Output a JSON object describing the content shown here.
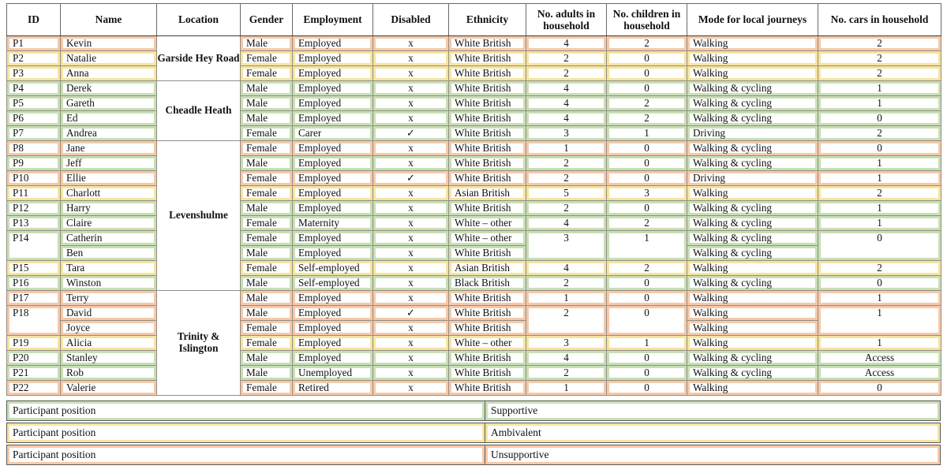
{
  "colors": {
    "supportive": "#C8DFB5",
    "ambivalent": "#F5E4A0",
    "unsupportive": "#F5C9AA"
  },
  "table": {
    "columns": [
      "id",
      "name",
      "location",
      "gender",
      "employment",
      "disabled",
      "ethnicity",
      "adults",
      "children",
      "mode",
      "cars"
    ],
    "headers": {
      "id": "ID",
      "name": "Name",
      "location": "Location",
      "gender": "Gender",
      "employment": "Employment",
      "disabled": "Disabled",
      "ethnicity": "Ethnicity",
      "adults": "No. adults in household",
      "children": "No. children in household",
      "mode": "Mode for local journeys",
      "cars": "No. cars in household"
    },
    "rows": [
      {
        "position": "unsupportive",
        "group_start": true,
        "cells": {
          "id": {
            "text": "P1"
          },
          "name": {
            "text": "Kevin"
          },
          "location": {
            "text": "Garside Hey Road",
            "rows": 3
          },
          "gender": {
            "text": "Male"
          },
          "employment": {
            "text": "Employed"
          },
          "disabled": {
            "text": "x"
          },
          "ethnicity": {
            "text": "White British"
          },
          "adults": {
            "text": "4"
          },
          "children": {
            "text": "2"
          },
          "mode": {
            "text": "Walking"
          },
          "cars": {
            "text": "2"
          }
        }
      },
      {
        "position": "ambivalent",
        "cells": {
          "id": {
            "text": "P2"
          },
          "name": {
            "text": "Natalie"
          },
          "gender": {
            "text": "Female"
          },
          "employment": {
            "text": "Employed"
          },
          "disabled": {
            "text": "x"
          },
          "ethnicity": {
            "text": "White British"
          },
          "adults": {
            "text": "2"
          },
          "children": {
            "text": "0"
          },
          "mode": {
            "text": "Walking"
          },
          "cars": {
            "text": "2"
          }
        }
      },
      {
        "position": "ambivalent",
        "cells": {
          "id": {
            "text": "P3"
          },
          "name": {
            "text": "Anna"
          },
          "gender": {
            "text": "Female"
          },
          "employment": {
            "text": "Employed"
          },
          "disabled": {
            "text": "x"
          },
          "ethnicity": {
            "text": "White British"
          },
          "adults": {
            "text": "2"
          },
          "children": {
            "text": "0"
          },
          "mode": {
            "text": "Walking"
          },
          "cars": {
            "text": "2"
          }
        }
      },
      {
        "position": "supportive",
        "group_start": true,
        "cells": {
          "id": {
            "text": "P4"
          },
          "name": {
            "text": "Derek"
          },
          "location": {
            "text": "Cheadle Heath",
            "rows": 4
          },
          "gender": {
            "text": "Male"
          },
          "employment": {
            "text": "Employed"
          },
          "disabled": {
            "text": "x"
          },
          "ethnicity": {
            "text": "White British"
          },
          "adults": {
            "text": "4"
          },
          "children": {
            "text": "0"
          },
          "mode": {
            "text": "Walking & cycling"
          },
          "cars": {
            "text": "1"
          }
        }
      },
      {
        "position": "supportive",
        "cells": {
          "id": {
            "text": "P5"
          },
          "name": {
            "text": "Gareth"
          },
          "gender": {
            "text": "Male"
          },
          "employment": {
            "text": "Employed"
          },
          "disabled": {
            "text": "x"
          },
          "ethnicity": {
            "text": "White British"
          },
          "adults": {
            "text": "4"
          },
          "children": {
            "text": "2"
          },
          "mode": {
            "text": "Walking & cycling"
          },
          "cars": {
            "text": "1"
          }
        }
      },
      {
        "position": "supportive",
        "cells": {
          "id": {
            "text": "P6"
          },
          "name": {
            "text": "Ed"
          },
          "gender": {
            "text": "Male"
          },
          "employment": {
            "text": "Employed"
          },
          "disabled": {
            "text": "x"
          },
          "ethnicity": {
            "text": "White British"
          },
          "adults": {
            "text": "4"
          },
          "children": {
            "text": "2"
          },
          "mode": {
            "text": "Walking & cycling"
          },
          "cars": {
            "text": "0"
          }
        }
      },
      {
        "position": "supportive",
        "cells": {
          "id": {
            "text": "P7"
          },
          "name": {
            "text": "Andrea"
          },
          "gender": {
            "text": "Female"
          },
          "employment": {
            "text": "Carer"
          },
          "disabled": {
            "text": "✓"
          },
          "ethnicity": {
            "text": "White British"
          },
          "adults": {
            "text": "3"
          },
          "children": {
            "text": "1"
          },
          "mode": {
            "text": "Driving"
          },
          "cars": {
            "text": "2"
          }
        }
      },
      {
        "position": "unsupportive",
        "group_start": true,
        "cells": {
          "id": {
            "text": "P8"
          },
          "name": {
            "text": "Jane"
          },
          "location": {
            "text": "Levenshulme",
            "rows": 10
          },
          "gender": {
            "text": "Female"
          },
          "employment": {
            "text": "Employed"
          },
          "disabled": {
            "text": "x"
          },
          "ethnicity": {
            "text": "White British"
          },
          "adults": {
            "text": "1"
          },
          "children": {
            "text": "0"
          },
          "mode": {
            "text": "Walking & cycling"
          },
          "cars": {
            "text": "0"
          }
        }
      },
      {
        "position": "supportive",
        "cells": {
          "id": {
            "text": "P9"
          },
          "name": {
            "text": "Jeff"
          },
          "gender": {
            "text": "Male"
          },
          "employment": {
            "text": "Employed"
          },
          "disabled": {
            "text": "x"
          },
          "ethnicity": {
            "text": "White British"
          },
          "adults": {
            "text": "2"
          },
          "children": {
            "text": "0"
          },
          "mode": {
            "text": "Walking & cycling"
          },
          "cars": {
            "text": "1"
          }
        }
      },
      {
        "position": "unsupportive",
        "cells": {
          "id": {
            "text": "P10"
          },
          "name": {
            "text": "Ellie"
          },
          "gender": {
            "text": "Female"
          },
          "employment": {
            "text": "Employed"
          },
          "disabled": {
            "text": "✓"
          },
          "ethnicity": {
            "text": "White British"
          },
          "adults": {
            "text": "2"
          },
          "children": {
            "text": "0"
          },
          "mode": {
            "text": "Driving"
          },
          "cars": {
            "text": "1"
          }
        }
      },
      {
        "position": "ambivalent",
        "cells": {
          "id": {
            "text": "P11"
          },
          "name": {
            "text": "Charlott"
          },
          "gender": {
            "text": "Female"
          },
          "employment": {
            "text": "Employed"
          },
          "disabled": {
            "text": "x"
          },
          "ethnicity": {
            "text": "Asian British"
          },
          "adults": {
            "text": "5"
          },
          "children": {
            "text": "3"
          },
          "mode": {
            "text": "Walking"
          },
          "cars": {
            "text": "2"
          }
        }
      },
      {
        "position": "supportive",
        "cells": {
          "id": {
            "text": "P12"
          },
          "name": {
            "text": "Harry"
          },
          "gender": {
            "text": "Male"
          },
          "employment": {
            "text": "Employed"
          },
          "disabled": {
            "text": "x"
          },
          "ethnicity": {
            "text": "White British"
          },
          "adults": {
            "text": "2"
          },
          "children": {
            "text": "0"
          },
          "mode": {
            "text": "Walking & cycling"
          },
          "cars": {
            "text": "1"
          }
        }
      },
      {
        "position": "supportive",
        "cells": {
          "id": {
            "text": "P13"
          },
          "name": {
            "text": "Claire"
          },
          "gender": {
            "text": "Female"
          },
          "employment": {
            "text": "Maternity"
          },
          "disabled": {
            "text": "x"
          },
          "ethnicity": {
            "text": "White – other"
          },
          "adults": {
            "text": "4"
          },
          "children": {
            "text": "2"
          },
          "mode": {
            "text": "Walking & cycling"
          },
          "cars": {
            "text": "1"
          }
        }
      },
      {
        "position": "supportive",
        "cells": {
          "id": {
            "text": "P14",
            "rows": 2
          },
          "name": {
            "text": "Catherin"
          },
          "gender": {
            "text": "Female"
          },
          "employment": {
            "text": "Employed"
          },
          "disabled": {
            "text": "x"
          },
          "ethnicity": {
            "text": "White – other"
          },
          "adults": {
            "text": "3",
            "rows": 2
          },
          "children": {
            "text": "1",
            "rows": 2
          },
          "mode": {
            "text": "Walking & cycling"
          },
          "cars": {
            "text": "0",
            "rows": 2
          }
        }
      },
      {
        "position": "supportive",
        "cells": {
          "name": {
            "text": "Ben"
          },
          "gender": {
            "text": "Male"
          },
          "employment": {
            "text": "Employed"
          },
          "disabled": {
            "text": "x"
          },
          "ethnicity": {
            "text": "White British"
          },
          "mode": {
            "text": "Walking & cycling"
          }
        }
      },
      {
        "position": "ambivalent",
        "cells": {
          "id": {
            "text": "P15"
          },
          "name": {
            "text": "Tara"
          },
          "gender": {
            "text": "Female"
          },
          "employment": {
            "text": "Self-employed"
          },
          "disabled": {
            "text": "x"
          },
          "ethnicity": {
            "text": "Asian British"
          },
          "adults": {
            "text": "4"
          },
          "children": {
            "text": "2"
          },
          "mode": {
            "text": "Walking"
          },
          "cars": {
            "text": "2"
          }
        }
      },
      {
        "position": "supportive",
        "cells": {
          "id": {
            "text": "P16"
          },
          "name": {
            "text": "Winston"
          },
          "gender": {
            "text": "Male"
          },
          "employment": {
            "text": "Self-employed"
          },
          "disabled": {
            "text": "x"
          },
          "ethnicity": {
            "text": "Black British"
          },
          "adults": {
            "text": "2"
          },
          "children": {
            "text": "0"
          },
          "mode": {
            "text": "Walking & cycling"
          },
          "cars": {
            "text": "0"
          }
        }
      },
      {
        "position": "unsupportive",
        "group_start": true,
        "cells": {
          "id": {
            "text": "P17"
          },
          "name": {
            "text": "Terry"
          },
          "location": {
            "text": "Trinity & Islington",
            "rows": 7
          },
          "gender": {
            "text": "Male"
          },
          "employment": {
            "text": "Employed"
          },
          "disabled": {
            "text": "x"
          },
          "ethnicity": {
            "text": "White British"
          },
          "adults": {
            "text": "1"
          },
          "children": {
            "text": "0"
          },
          "mode": {
            "text": "Walking"
          },
          "cars": {
            "text": "1"
          }
        }
      },
      {
        "position": "unsupportive",
        "cells": {
          "id": {
            "text": "P18",
            "rows": 2
          },
          "name": {
            "text": "David"
          },
          "gender": {
            "text": "Male"
          },
          "employment": {
            "text": "Employed"
          },
          "disabled": {
            "text": "✓"
          },
          "ethnicity": {
            "text": "White British"
          },
          "adults": {
            "text": "2",
            "rows": 2
          },
          "children": {
            "text": "0",
            "rows": 2
          },
          "mode": {
            "text": "Walking"
          },
          "cars": {
            "text": "1",
            "rows": 2
          }
        }
      },
      {
        "position": "unsupportive",
        "cells": {
          "name": {
            "text": "Joyce"
          },
          "gender": {
            "text": "Female"
          },
          "employment": {
            "text": "Employed"
          },
          "disabled": {
            "text": "x"
          },
          "ethnicity": {
            "text": "White British"
          },
          "mode": {
            "text": "Walking"
          }
        }
      },
      {
        "position": "ambivalent",
        "cells": {
          "id": {
            "text": "P19"
          },
          "name": {
            "text": "Alicia"
          },
          "gender": {
            "text": "Female"
          },
          "employment": {
            "text": "Employed"
          },
          "disabled": {
            "text": "x"
          },
          "ethnicity": {
            "text": "White – other"
          },
          "adults": {
            "text": "3"
          },
          "children": {
            "text": "1"
          },
          "mode": {
            "text": "Walking"
          },
          "cars": {
            "text": "1"
          }
        }
      },
      {
        "position": "supportive",
        "cells": {
          "id": {
            "text": "P20"
          },
          "name": {
            "text": "Stanley"
          },
          "gender": {
            "text": "Male"
          },
          "employment": {
            "text": "Employed"
          },
          "disabled": {
            "text": "x"
          },
          "ethnicity": {
            "text": "White British"
          },
          "adults": {
            "text": "4"
          },
          "children": {
            "text": "0"
          },
          "mode": {
            "text": "Walking & cycling"
          },
          "cars": {
            "text": "Access"
          }
        }
      },
      {
        "position": "supportive",
        "cells": {
          "id": {
            "text": "P21"
          },
          "name": {
            "text": "Rob"
          },
          "gender": {
            "text": "Male"
          },
          "employment": {
            "text": "Unemployed"
          },
          "disabled": {
            "text": "x"
          },
          "ethnicity": {
            "text": "White British"
          },
          "adults": {
            "text": "2"
          },
          "children": {
            "text": "0"
          },
          "mode": {
            "text": "Walking & cycling"
          },
          "cars": {
            "text": "Access"
          }
        }
      },
      {
        "position": "unsupportive",
        "cells": {
          "id": {
            "text": "P22"
          },
          "name": {
            "text": "Valerie"
          },
          "gender": {
            "text": "Female"
          },
          "employment": {
            "text": "Retired"
          },
          "disabled": {
            "text": "x"
          },
          "ethnicity": {
            "text": "White British"
          },
          "adults": {
            "text": "1"
          },
          "children": {
            "text": "0"
          },
          "mode": {
            "text": "Walking"
          },
          "cars": {
            "text": "0"
          }
        }
      }
    ]
  },
  "legend": [
    {
      "label": "Participant position",
      "value": "Supportive",
      "position": "supportive"
    },
    {
      "label": "Participant position",
      "value": "Ambivalent",
      "position": "ambivalent"
    },
    {
      "label": "Participant position",
      "value": "Unsupportive",
      "position": "unsupportive"
    }
  ]
}
